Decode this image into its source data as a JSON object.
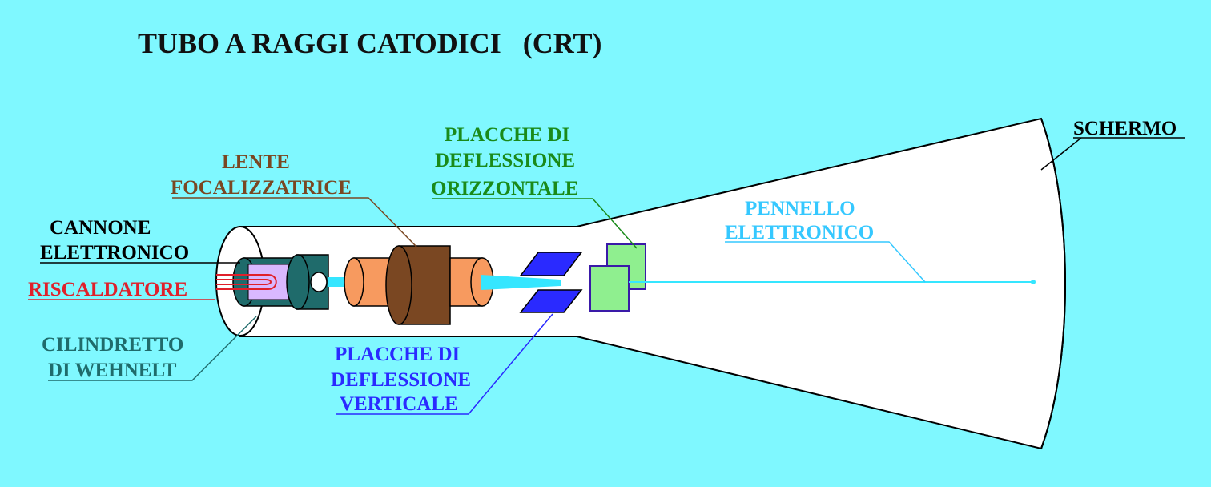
{
  "title": "TUBO A RAGGI CATODICI   (CRT)",
  "colors": {
    "background": "#7ff8ff",
    "tube": "#ffffff",
    "wehnelt": "#1f6b6b",
    "heater": "#d9b8ff",
    "lens": "#f79a5f",
    "lens_core": "#7a4722",
    "vertical_plates": "#2a2aff",
    "horizontal_plates": "#8fef8f",
    "beam": "#35e6ff"
  },
  "labels": {
    "cannone_1": "CANNONE",
    "cannone_2": "ELETTRONICO",
    "riscaldatore": "RISCALDATORE",
    "cilindretto_1": "CILINDRETTO",
    "cilindretto_2": "DI WEHNELT",
    "lente_1": "LENTE",
    "lente_2": "FOCALIZZATRICE",
    "orizz_1": "PLACCHE DI",
    "orizz_2": "DEFLESSIONE",
    "orizz_3": "ORIZZONTALE",
    "vert_1": "PLACCHE DI",
    "vert_2": "DEFLESSIONE",
    "vert_3": "VERTICALE",
    "pennello_1": "PENNELLO",
    "pennello_2": "ELETTRONICO",
    "schermo": "SCHERMO"
  }
}
